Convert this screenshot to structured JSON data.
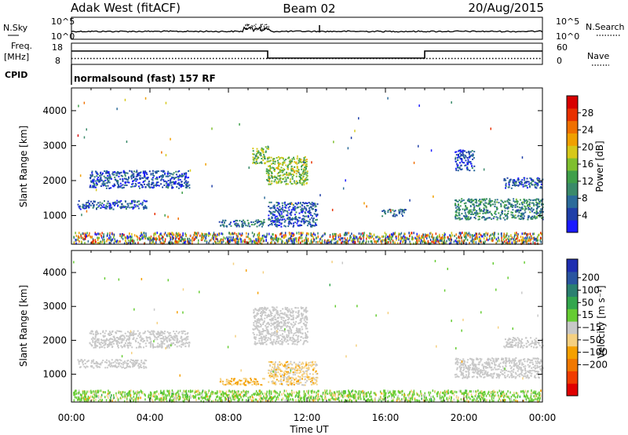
{
  "header": {
    "station": "Adak West (fitACF)",
    "beam": "Beam 02",
    "date": "20/Aug/2015"
  },
  "strip_labels": {
    "nsky": "N.Sky",
    "nsearch": "N.Search",
    "freq_top": "Freq.",
    "freq_bottom": "[MHz]",
    "nave": "Nave",
    "cpid": "CPID",
    "cpid_value": "normalsound (fast) 157 RF"
  },
  "strip_ticks": {
    "noise_left": [
      "10^5",
      "10^0"
    ],
    "noise_right": [
      "10^5",
      "10^0"
    ],
    "freq_left": [
      "18",
      "8"
    ],
    "freq_right": [
      "60",
      "0"
    ]
  },
  "colors": {
    "power_scale": [
      "#1a1aff",
      "#1f3fa8",
      "#2b6b9a",
      "#3a8a6a",
      "#3f9f4a",
      "#7fbf2f",
      "#d6c81a",
      "#f0a000",
      "#f07000",
      "#e83000",
      "#d80000"
    ],
    "velocity_scale": [
      "#e00000",
      "#f03c00",
      "#f07800",
      "#f5a000",
      "#f5d080",
      "#c8c8c8",
      "#66cc33",
      "#33a64d",
      "#2b8070",
      "#2a55a0",
      "#1f2fb0"
    ]
  },
  "chart_data": [
    {
      "type": "heatmap",
      "name": "power-panel",
      "xlabel": "",
      "ylabel": "Slant Range [km]",
      "xlim": [
        "00:00",
        "00:00"
      ],
      "x_tick_labels": [
        "00:00",
        "04:00",
        "08:00",
        "12:00",
        "16:00",
        "20:00",
        "00:00"
      ],
      "ylim": [
        180,
        4650
      ],
      "y_ticks": [
        1000,
        2000,
        3000,
        4000
      ],
      "colorbar": {
        "label": "Power [dB]",
        "range": [
          0,
          32
        ],
        "ticks": [
          4,
          8,
          12,
          16,
          20,
          24,
          28
        ]
      },
      "echo_regions": [
        {
          "t_start": 0.9,
          "t_end": 6.0,
          "range_start": 1800,
          "range_end": 2300,
          "power_db": 5
        },
        {
          "t_start": 0.3,
          "t_end": 3.8,
          "range_start": 1200,
          "range_end": 1450,
          "power_db": 6
        },
        {
          "t_start": 7.5,
          "t_end": 9.8,
          "range_start": 700,
          "range_end": 900,
          "power_db": 7
        },
        {
          "t_start": 9.2,
          "t_end": 10.0,
          "range_start": 2500,
          "range_end": 3000,
          "power_db": 14
        },
        {
          "t_start": 9.9,
          "t_end": 12.0,
          "range_start": 1900,
          "range_end": 2700,
          "power_db": 16
        },
        {
          "t_start": 10.0,
          "t_end": 12.5,
          "range_start": 700,
          "range_end": 1400,
          "power_db": 6
        },
        {
          "t_start": 15.8,
          "t_end": 17.0,
          "range_start": 1000,
          "range_end": 1200,
          "power_db": 7
        },
        {
          "t_start": 19.5,
          "t_end": 24.0,
          "range_start": 900,
          "range_end": 1500,
          "power_db": 10
        },
        {
          "t_start": 19.5,
          "t_end": 20.5,
          "range_start": 2300,
          "range_end": 2900,
          "power_db": 5
        },
        {
          "t_start": 22.0,
          "t_end": 24.0,
          "range_start": 1800,
          "range_end": 2100,
          "power_db": 6
        }
      ]
    },
    {
      "type": "heatmap",
      "name": "velocity-panel",
      "xlabel": "Time UT",
      "ylabel": "Slant Range [km]",
      "xlim": [
        "00:00",
        "00:00"
      ],
      "x_tick_labels": [
        "00:00",
        "04:00",
        "08:00",
        "12:00",
        "16:00",
        "20:00",
        "00:00"
      ],
      "ylim": [
        180,
        4650
      ],
      "y_ticks": [
        1000,
        2000,
        3000,
        4000
      ],
      "colorbar": {
        "label": "Velocity [m s⁻¹]",
        "range": [
          -250,
          250
        ],
        "ticks": [
          "200",
          "100",
          "50",
          "15",
          "−15",
          "−50",
          "−100",
          "−200"
        ]
      },
      "echo_regions": [
        {
          "t_start": 0.9,
          "t_end": 6.0,
          "range_start": 1800,
          "range_end": 2300,
          "velocity": 0
        },
        {
          "t_start": 0.3,
          "t_end": 3.8,
          "range_start": 1200,
          "range_end": 1450,
          "velocity": 0
        },
        {
          "t_start": 7.5,
          "t_end": 9.8,
          "range_start": 700,
          "range_end": 900,
          "velocity": -60
        },
        {
          "t_start": 9.2,
          "t_end": 12.0,
          "range_start": 1900,
          "range_end": 3000,
          "velocity": 0
        },
        {
          "t_start": 10.0,
          "t_end": 12.5,
          "range_start": 700,
          "range_end": 1400,
          "velocity": -40
        },
        {
          "t_start": 19.5,
          "t_end": 24.0,
          "range_start": 900,
          "range_end": 1500,
          "velocity": 0
        },
        {
          "t_start": 22.0,
          "t_end": 24.0,
          "range_start": 1800,
          "range_end": 2100,
          "velocity": 0
        }
      ]
    }
  ]
}
